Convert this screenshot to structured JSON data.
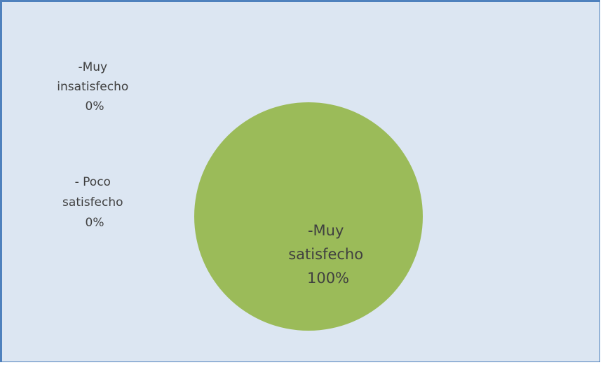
{
  "chart_data": {
    "type": "pie",
    "title": "",
    "colors": [
      "#9bbb59",
      "#4f81bd",
      "#c0504d"
    ],
    "slices": [
      {
        "label_lines": [
          "-Muy",
          "satisfecho",
          "100%"
        ],
        "value": 100
      },
      {
        "label_lines": [
          "-Muy",
          "insatisfecho",
          "0%"
        ],
        "value": 0
      },
      {
        "label_lines": [
          "- Poco",
          "satisfecho",
          "0%"
        ],
        "value": 0
      }
    ]
  }
}
